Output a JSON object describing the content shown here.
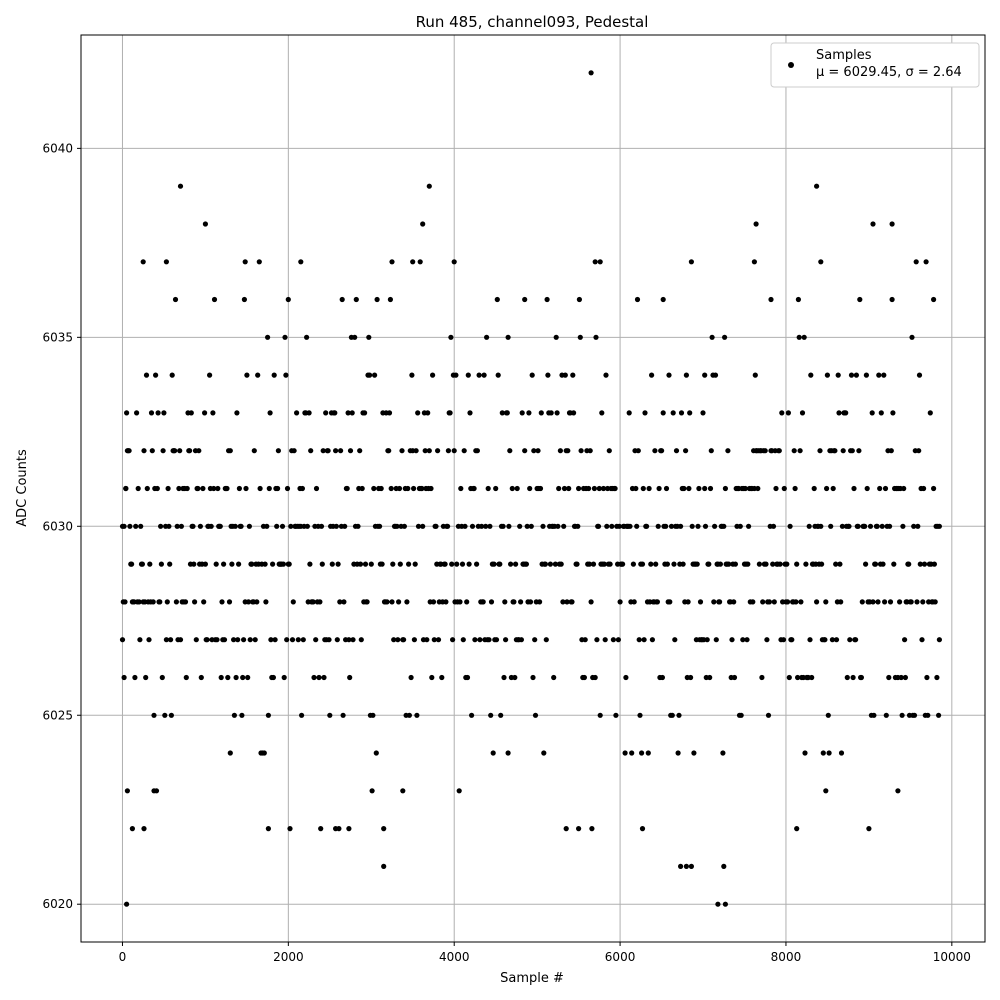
{
  "chart_data": {
    "type": "scatter",
    "title": "Run 485, channel093, Pedestal",
    "xlabel": "Sample #",
    "ylabel": "ADC Counts",
    "xlim": [
      -500,
      10400
    ],
    "ylim": [
      6019,
      6043
    ],
    "xticks": [
      0,
      2000,
      4000,
      6000,
      8000,
      10000
    ],
    "yticks": [
      6020,
      6025,
      6030,
      6035,
      6040
    ],
    "grid": true,
    "legend": {
      "placement": "top-right",
      "label": "Samples",
      "stats": "μ = 6029.45, σ = 2.64"
    },
    "series": [
      {
        "name": "Samples",
        "marker": "circle",
        "color": "#000000",
        "x_range": [
          0,
          9850
        ],
        "step": 10,
        "mean": 6029.45,
        "std": 2.64,
        "points": [
          [
            0,
            6027
          ],
          [
            20,
            6026
          ],
          [
            40,
            6031
          ],
          [
            50,
            6020
          ],
          [
            60,
            6023
          ],
          [
            120,
            6022
          ],
          [
            250,
            6037
          ],
          [
            260,
            6022
          ],
          [
            380,
            6023
          ],
          [
            530,
            6037
          ],
          [
            700,
            6039
          ],
          [
            1000,
            6038
          ],
          [
            1300,
            6024
          ],
          [
            1480,
            6037
          ],
          [
            1760,
            6022
          ],
          [
            2000,
            6036
          ],
          [
            2150,
            6037
          ],
          [
            2570,
            6022
          ],
          [
            2730,
            6022
          ],
          [
            3150,
            6021
          ],
          [
            3250,
            6037
          ],
          [
            3380,
            6023
          ],
          [
            3500,
            6037
          ],
          [
            3620,
            6038
          ],
          [
            3700,
            6039
          ],
          [
            4000,
            6037
          ],
          [
            4650,
            6035
          ],
          [
            4850,
            6036
          ],
          [
            5350,
            6022
          ],
          [
            5500,
            6022
          ],
          [
            5650,
            6042
          ],
          [
            5700,
            6037
          ],
          [
            5760,
            6037
          ],
          [
            6270,
            6022
          ],
          [
            6520,
            6036
          ],
          [
            6730,
            6021
          ],
          [
            6800,
            6021
          ],
          [
            6860,
            6021
          ],
          [
            7020,
            6034
          ],
          [
            7180,
            6020
          ],
          [
            7250,
            6021
          ],
          [
            7270,
            6020
          ],
          [
            7640,
            6038
          ],
          [
            7620,
            6037
          ],
          [
            7820,
            6036
          ],
          [
            8130,
            6022
          ],
          [
            8370,
            6039
          ],
          [
            8420,
            6037
          ],
          [
            8480,
            6023
          ],
          [
            9050,
            6038
          ],
          [
            9280,
            6038
          ],
          [
            9350,
            6023
          ],
          [
            9780,
            6036
          ],
          [
            9850,
            6027
          ]
        ]
      }
    ]
  }
}
